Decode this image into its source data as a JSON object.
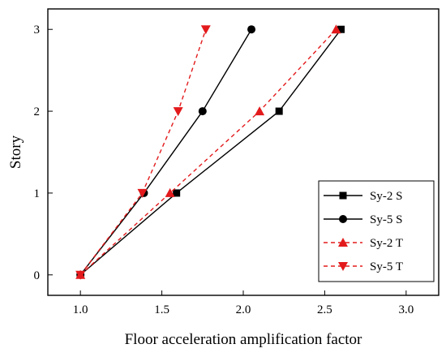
{
  "chart_data": {
    "type": "line",
    "title": "",
    "xlabel": "Floor acceleration amplification factor",
    "ylabel": "Story",
    "xlim": [
      0.8,
      3.2
    ],
    "ylim": [
      -0.25,
      3.25
    ],
    "xticks": [
      1.0,
      1.5,
      2.0,
      2.5,
      3.0
    ],
    "xtick_labels": [
      "1.0",
      "1.5",
      "2.0",
      "2.5",
      "3.0"
    ],
    "yticks": [
      0,
      1,
      2,
      3
    ],
    "ytick_labels": [
      "0",
      "1",
      "2",
      "3"
    ],
    "grid": false,
    "legend_position": "bottom-right",
    "series": [
      {
        "name": "Sy-2 S",
        "color": "#000000",
        "dash": "solid",
        "marker": "square",
        "x": [
          1.0,
          1.59,
          2.22,
          2.6
        ],
        "y": [
          0,
          1,
          2,
          3
        ]
      },
      {
        "name": "Sy-5 S",
        "color": "#000000",
        "dash": "solid",
        "marker": "circle",
        "x": [
          1.0,
          1.39,
          1.75,
          2.05
        ],
        "y": [
          0,
          1,
          2,
          3
        ]
      },
      {
        "name": "Sy-2 T",
        "color": "#e31a1c",
        "dash": "dashed",
        "marker": "triangle-up",
        "x": [
          1.0,
          1.55,
          2.1,
          2.57
        ],
        "y": [
          0,
          1,
          2,
          3
        ]
      },
      {
        "name": "Sy-5 T",
        "color": "#e31a1c",
        "dash": "dashed",
        "marker": "triangle-down",
        "x": [
          1.0,
          1.38,
          1.6,
          1.77
        ],
        "y": [
          0,
          1,
          2,
          3
        ]
      }
    ]
  }
}
